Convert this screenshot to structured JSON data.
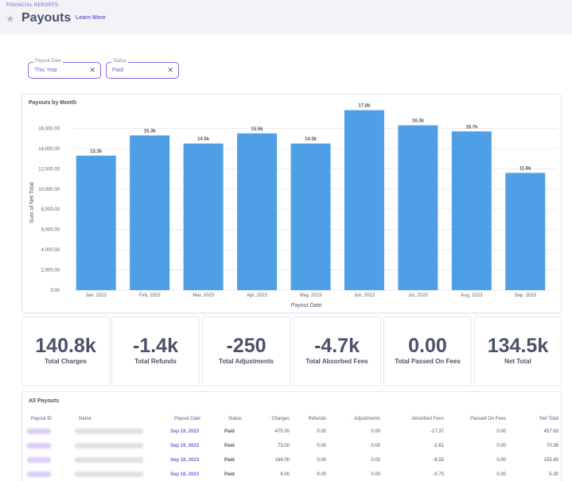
{
  "header": {
    "breadcrumb": "FINANCIAL REPORTS",
    "title": "Payouts",
    "learn_more": "Learn More"
  },
  "filters": [
    {
      "label": "Payout Date",
      "value": "This Year"
    },
    {
      "label": "Status",
      "value": "Paid"
    }
  ],
  "chart_title": "Payouts by Month",
  "chart_data": {
    "type": "bar",
    "title": "Payouts by Month",
    "xlabel": "Payout Date",
    "ylabel": "Sum of Net Total",
    "categories": [
      "Jan, 2023",
      "Feb, 2023",
      "Mar, 2023",
      "Apr, 2023",
      "May, 2023",
      "Jun, 2023",
      "Jul, 2023",
      "Aug, 2023",
      "Sep, 2023"
    ],
    "values": [
      13300,
      15300,
      14500,
      15500,
      14500,
      17800,
      16300,
      15700,
      11600
    ],
    "data_labels": [
      "13.3k",
      "15.3k",
      "14.5k",
      "15.5k",
      "14.5k",
      "17.8k",
      "16.3k",
      "15.7k",
      "11.6k"
    ],
    "yticks": [
      0,
      2000,
      4000,
      6000,
      8000,
      10000,
      12000,
      14000,
      16000
    ],
    "ytick_labels": [
      "0.00",
      "2,000.00",
      "4,000.00",
      "6,000.00",
      "8,000.00",
      "10,000.00",
      "12,000.00",
      "14,000.00",
      "16,000.00"
    ],
    "ylim": [
      0,
      18000
    ],
    "bar_color": "#4f9fe6",
    "grid": true
  },
  "kpis": [
    {
      "value": "140.8k",
      "label": "Total Charges"
    },
    {
      "value": "-1.4k",
      "label": "Total Refunds"
    },
    {
      "value": "-250",
      "label": "Total Adjustments"
    },
    {
      "value": "-4.7k",
      "label": "Total Absorbed Fees"
    },
    {
      "value": "0.00",
      "label": "Total Passed On Fees"
    },
    {
      "value": "134.5k",
      "label": "Net Total"
    }
  ],
  "table": {
    "title": "All Payouts",
    "columns": [
      "Payout ID",
      "Name",
      "Payout Date",
      "Status",
      "Charges",
      "Refunds",
      "Adjustments",
      "Absorbed Fees",
      "Passed On Fees",
      "Net Total"
    ],
    "rows": [
      {
        "date": "Sep 19, 2023",
        "status": "Paid",
        "charges": "475.00",
        "refunds": "0.00",
        "adjustments": "0.00",
        "absorbed": "-17.37",
        "passed": "0.00",
        "net": "457.63"
      },
      {
        "date": "Sep 19, 2023",
        "status": "Paid",
        "charges": "73.00",
        "refunds": "0.00",
        "adjustments": "0.00",
        "absorbed": "-2.61",
        "passed": "0.00",
        "net": "70.39"
      },
      {
        "date": "Sep 18, 2023",
        "status": "Paid",
        "charges": "164.00",
        "refunds": "0.00",
        "adjustments": "0.00",
        "absorbed": "-8.55",
        "passed": "0.00",
        "net": "155.45"
      },
      {
        "date": "Sep 18, 2023",
        "status": "Paid",
        "charges": "6.00",
        "refunds": "0.00",
        "adjustments": "0.00",
        "absorbed": "-0.70",
        "passed": "0.00",
        "net": "5.30"
      }
    ]
  },
  "colors": {
    "accent": "#7b5fd6",
    "bar": "#4f9fe6",
    "text": "#4a5269"
  },
  "icons": {
    "favorite": "star-icon",
    "clear": "close-icon"
  }
}
